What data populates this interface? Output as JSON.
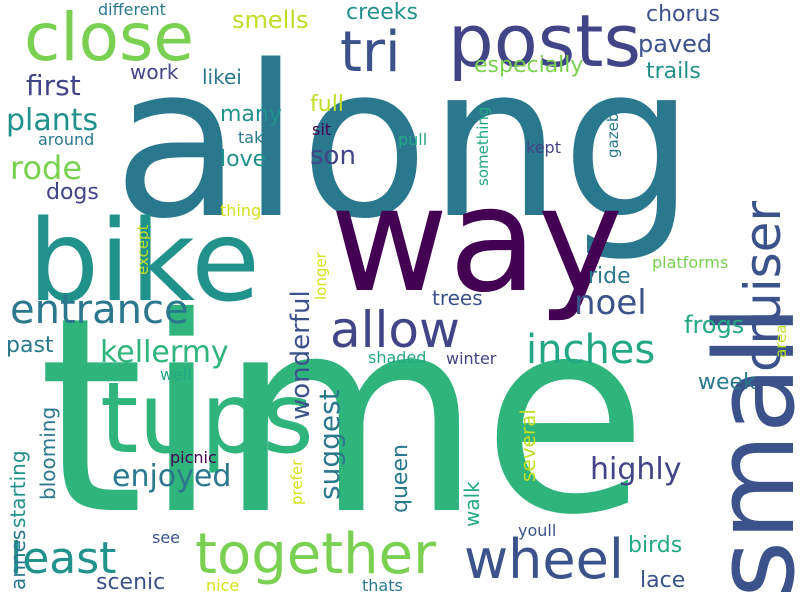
{
  "palette": {
    "purple": "#440154",
    "indigo": "#3b528b",
    "slate": "#414487",
    "teal": "#2a788e",
    "sea": "#21918c",
    "jade": "#22a884",
    "green": "#2fb47c",
    "lime": "#7ad151",
    "chartreuse": "#bddf26",
    "yellow": "#d4e21a"
  },
  "words": [
    {
      "text": "time",
      "color": "green"
    },
    {
      "text": "along",
      "color": "teal"
    },
    {
      "text": "way",
      "color": "purple"
    },
    {
      "text": "small",
      "color": "indigo"
    },
    {
      "text": "bike",
      "color": "sea"
    },
    {
      "text": "tups",
      "color": "green"
    },
    {
      "text": "posts",
      "color": "slate"
    },
    {
      "text": "close",
      "color": "lime"
    },
    {
      "text": "cruiser",
      "color": "indigo"
    },
    {
      "text": "together",
      "color": "lime"
    },
    {
      "text": "wheel",
      "color": "indigo"
    },
    {
      "text": "tri",
      "color": "indigo"
    },
    {
      "text": "allow",
      "color": "slate"
    },
    {
      "text": "entrance",
      "color": "teal"
    },
    {
      "text": "inches",
      "color": "jade"
    },
    {
      "text": "least",
      "color": "sea"
    },
    {
      "text": "noel",
      "color": "indigo"
    },
    {
      "text": "kellermy",
      "color": "green"
    },
    {
      "text": "wonderful",
      "color": "indigo"
    },
    {
      "text": "enjoyed",
      "color": "teal"
    },
    {
      "text": "highly",
      "color": "slate"
    },
    {
      "text": "suggest",
      "color": "teal"
    },
    {
      "text": "plants",
      "color": "sea"
    },
    {
      "text": "first",
      "color": "slate"
    },
    {
      "text": "rode",
      "color": "lime"
    },
    {
      "text": "son",
      "color": "slate"
    },
    {
      "text": "frogs",
      "color": "jade"
    },
    {
      "text": "paved",
      "color": "indigo"
    },
    {
      "text": "chorus",
      "color": "indigo"
    },
    {
      "text": "smells",
      "color": "chartreuse"
    },
    {
      "text": "creeks",
      "color": "sea"
    },
    {
      "text": "especially",
      "color": "lime"
    },
    {
      "text": "trails",
      "color": "sea"
    },
    {
      "text": "work",
      "color": "slate"
    },
    {
      "text": "likei",
      "color": "teal"
    },
    {
      "text": "many",
      "color": "sea"
    },
    {
      "text": "full",
      "color": "chartreuse"
    },
    {
      "text": "love",
      "color": "sea"
    },
    {
      "text": "dogs",
      "color": "slate"
    },
    {
      "text": "ride",
      "color": "teal"
    },
    {
      "text": "trees",
      "color": "indigo"
    },
    {
      "text": "week",
      "color": "teal"
    },
    {
      "text": "past",
      "color": "teal"
    },
    {
      "text": "birds",
      "color": "jade"
    },
    {
      "text": "lace",
      "color": "indigo"
    },
    {
      "text": "scenic",
      "color": "indigo"
    },
    {
      "text": "queen",
      "color": "teal"
    },
    {
      "text": "walk",
      "color": "jade"
    },
    {
      "text": "several",
      "color": "chartreuse"
    },
    {
      "text": "blooming",
      "color": "teal"
    },
    {
      "text": "starting",
      "color": "sea"
    },
    {
      "text": "annes",
      "color": "teal"
    },
    {
      "text": "platforms",
      "color": "lime"
    },
    {
      "text": "different",
      "color": "teal"
    },
    {
      "text": "around",
      "color": "teal"
    },
    {
      "text": "take",
      "color": "teal"
    },
    {
      "text": "sit",
      "color": "purple"
    },
    {
      "text": "pull",
      "color": "jade"
    },
    {
      "text": "kept",
      "color": "slate"
    },
    {
      "text": "something",
      "color": "jade"
    },
    {
      "text": "gazebo",
      "color": "teal"
    },
    {
      "text": "thing",
      "color": "yellow"
    },
    {
      "text": "except",
      "color": "chartreuse"
    },
    {
      "text": "longer",
      "color": "yellow"
    },
    {
      "text": "shaded",
      "color": "jade"
    },
    {
      "text": "winter",
      "color": "slate"
    },
    {
      "text": "well",
      "color": "jade"
    },
    {
      "text": "picnic",
      "color": "purple"
    },
    {
      "text": "prefer",
      "color": "yellow"
    },
    {
      "text": "see",
      "color": "indigo"
    },
    {
      "text": "youll",
      "color": "indigo"
    },
    {
      "text": "nice",
      "color": "yellow"
    },
    {
      "text": "thats",
      "color": "teal"
    },
    {
      "text": "area",
      "color": "chartreuse"
    }
  ]
}
